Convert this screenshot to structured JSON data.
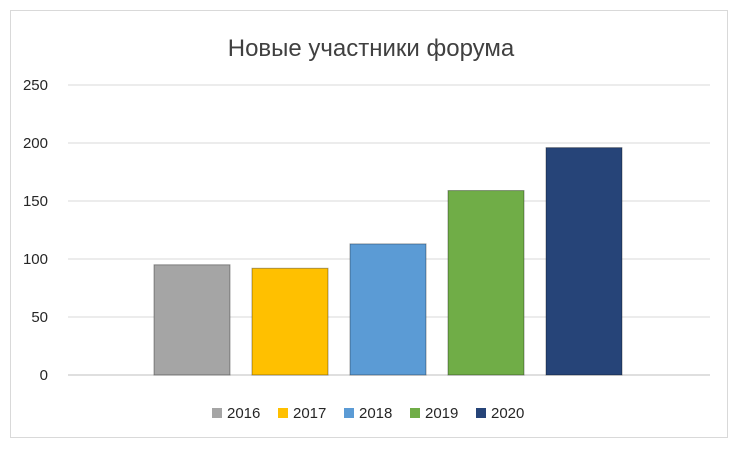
{
  "chart_data": {
    "type": "bar",
    "title": "Новые участники форума",
    "xlabel": "",
    "ylabel": "",
    "ylim": [
      0,
      250
    ],
    "yticks": [
      "0",
      "50",
      "100",
      "150",
      "200",
      "250"
    ],
    "grid": true,
    "legend_position": "bottom",
    "series": [
      {
        "name": "2016",
        "value": 95,
        "color": "#A5A5A5"
      },
      {
        "name": "2017",
        "value": 92,
        "color": "#FFC000"
      },
      {
        "name": "2018",
        "value": 113,
        "color": "#5B9BD5"
      },
      {
        "name": "2019",
        "value": 159,
        "color": "#70AD47"
      },
      {
        "name": "2020",
        "value": 196,
        "color": "#264478"
      }
    ]
  }
}
